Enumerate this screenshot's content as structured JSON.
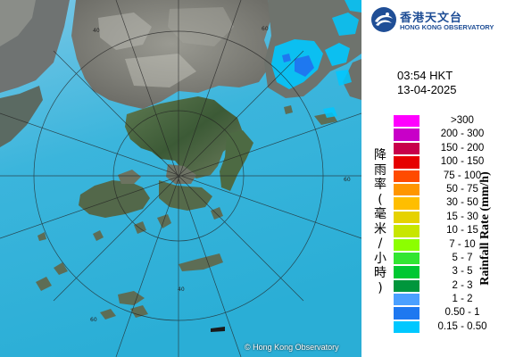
{
  "header": {
    "org_name_cn": "香港天文台",
    "org_name_en": "HONG KONG OBSERVATORY"
  },
  "timestamp": {
    "time": "03:54 HKT",
    "date": "13-04-2025"
  },
  "legend": {
    "title_cn": [
      "降",
      "雨",
      "率",
      "(",
      "毫",
      "米",
      "/",
      "小",
      "時",
      ")"
    ],
    "title_en": "Rainfall Rate (mm/h)",
    "items": [
      {
        "label": ">300",
        "color": "#ff00ff"
      },
      {
        "label": "200 - 300",
        "color": "#c800c8"
      },
      {
        "label": "150 - 200",
        "color": "#c8004b"
      },
      {
        "label": "100 - 150",
        "color": "#e60000"
      },
      {
        "label": "75 - 100",
        "color": "#ff4b00"
      },
      {
        "label": "50 - 75",
        "color": "#ff9600"
      },
      {
        "label": "30 - 50",
        "color": "#ffbe00"
      },
      {
        "label": "15 - 30",
        "color": "#e6d200"
      },
      {
        "label": "10 - 15",
        "color": "#c8e600"
      },
      {
        "label": "7 - 10",
        "color": "#8cff00"
      },
      {
        "label": "5 - 7",
        "color": "#32e632"
      },
      {
        "label": "3 - 5",
        "color": "#00c832"
      },
      {
        "label": "2 - 3",
        "color": "#00963c"
      },
      {
        "label": "1 - 2",
        "color": "#4ba0ff"
      },
      {
        "label": "0.50 - 1",
        "color": "#1e78f0"
      },
      {
        "label": "0.15 - 0.50",
        "color": "#00c8ff"
      }
    ]
  },
  "map": {
    "range_labels": [
      "40",
      "60",
      "60",
      "60",
      "40"
    ],
    "copyright": "© Hong Kong Observatory"
  }
}
